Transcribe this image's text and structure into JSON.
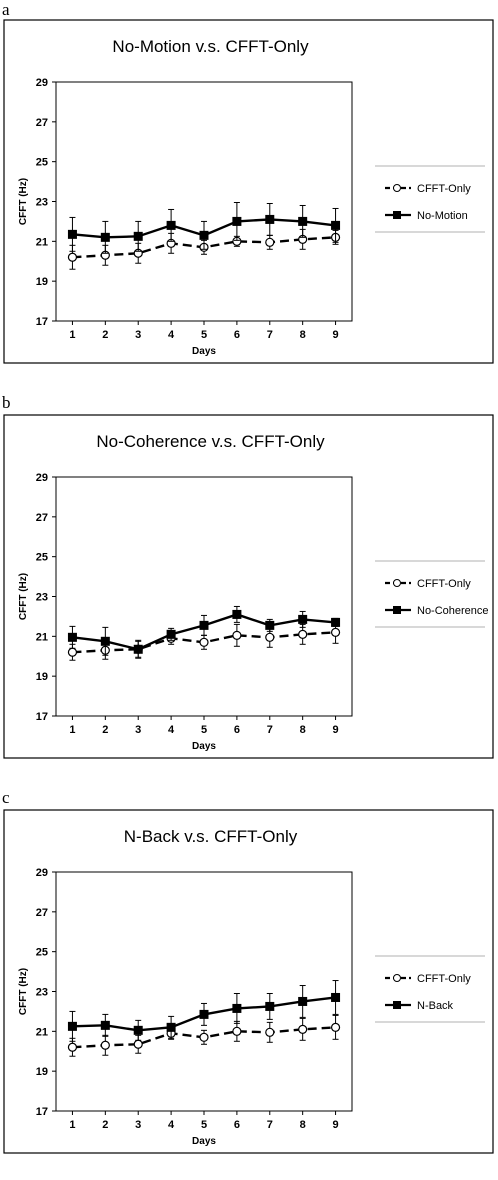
{
  "chart_data": [
    {
      "panel": "a",
      "type": "line",
      "title": "No-Motion v.s. CFFT-Only",
      "xlabel": "Days",
      "ylabel": "CFFT (Hz)",
      "x": [
        1,
        2,
        3,
        4,
        5,
        6,
        7,
        8,
        9
      ],
      "ylim": [
        17,
        29
      ],
      "yticks": [
        17,
        19,
        21,
        23,
        25,
        27,
        29
      ],
      "grid": false,
      "legend": "right",
      "series": [
        {
          "name": "CFFT-Only",
          "style": "dashed-open-circle",
          "values": [
            20.2,
            20.3,
            20.4,
            20.9,
            20.7,
            21.0,
            20.95,
            21.1,
            21.2
          ],
          "errors": [
            0.6,
            0.5,
            0.5,
            0.5,
            0.35,
            0.25,
            0.35,
            0.5,
            0.35
          ]
        },
        {
          "name": "No-Motion",
          "style": "solid-filled-square",
          "values": [
            21.35,
            21.2,
            21.25,
            21.8,
            21.3,
            22.0,
            22.1,
            22.0,
            21.8
          ],
          "errors": [
            0.85,
            0.8,
            0.75,
            0.8,
            0.7,
            0.95,
            0.8,
            0.8,
            0.85
          ]
        }
      ]
    },
    {
      "panel": "b",
      "type": "line",
      "title": "No-Coherence v.s. CFFT-Only",
      "xlabel": "Days",
      "ylabel": "CFFT (Hz)",
      "x": [
        1,
        2,
        3,
        4,
        5,
        6,
        7,
        8,
        9
      ],
      "ylim": [
        17,
        29
      ],
      "yticks": [
        17,
        19,
        21,
        23,
        25,
        27,
        29
      ],
      "grid": false,
      "legend": "right",
      "series": [
        {
          "name": "CFFT-Only",
          "style": "dashed-open-circle",
          "values": [
            20.2,
            20.3,
            20.35,
            20.9,
            20.7,
            21.05,
            20.95,
            21.1,
            21.2
          ],
          "errors": [
            0.4,
            0.45,
            0.4,
            0.3,
            0.35,
            0.55,
            0.5,
            0.5,
            0.55
          ]
        },
        {
          "name": "No-Coherence",
          "style": "solid-filled-square",
          "values": [
            20.95,
            20.75,
            20.35,
            21.1,
            21.55,
            22.1,
            21.55,
            21.85,
            21.7
          ],
          "errors": [
            0.55,
            0.7,
            0.45,
            0.3,
            0.5,
            0.4,
            0.3,
            0.4,
            0.2
          ]
        }
      ]
    },
    {
      "panel": "c",
      "type": "line",
      "title": "N-Back v.s. CFFT-Only",
      "xlabel": "Days",
      "ylabel": "CFFT (Hz)",
      "x": [
        1,
        2,
        3,
        4,
        5,
        6,
        7,
        8,
        9
      ],
      "ylim": [
        17,
        29
      ],
      "yticks": [
        17,
        19,
        21,
        23,
        25,
        27,
        29
      ],
      "grid": false,
      "legend": "right",
      "series": [
        {
          "name": "CFFT-Only",
          "style": "dashed-open-circle",
          "values": [
            20.2,
            20.3,
            20.35,
            20.9,
            20.7,
            21.0,
            20.95,
            21.1,
            21.2
          ],
          "errors": [
            0.45,
            0.5,
            0.45,
            0.3,
            0.35,
            0.5,
            0.5,
            0.55,
            0.6
          ]
        },
        {
          "name": "N-Back",
          "style": "solid-filled-square",
          "values": [
            21.25,
            21.3,
            21.05,
            21.2,
            21.85,
            22.15,
            22.25,
            22.5,
            22.7
          ],
          "errors": [
            0.75,
            0.55,
            0.5,
            0.55,
            0.55,
            0.75,
            0.65,
            0.8,
            0.85
          ]
        }
      ]
    }
  ]
}
